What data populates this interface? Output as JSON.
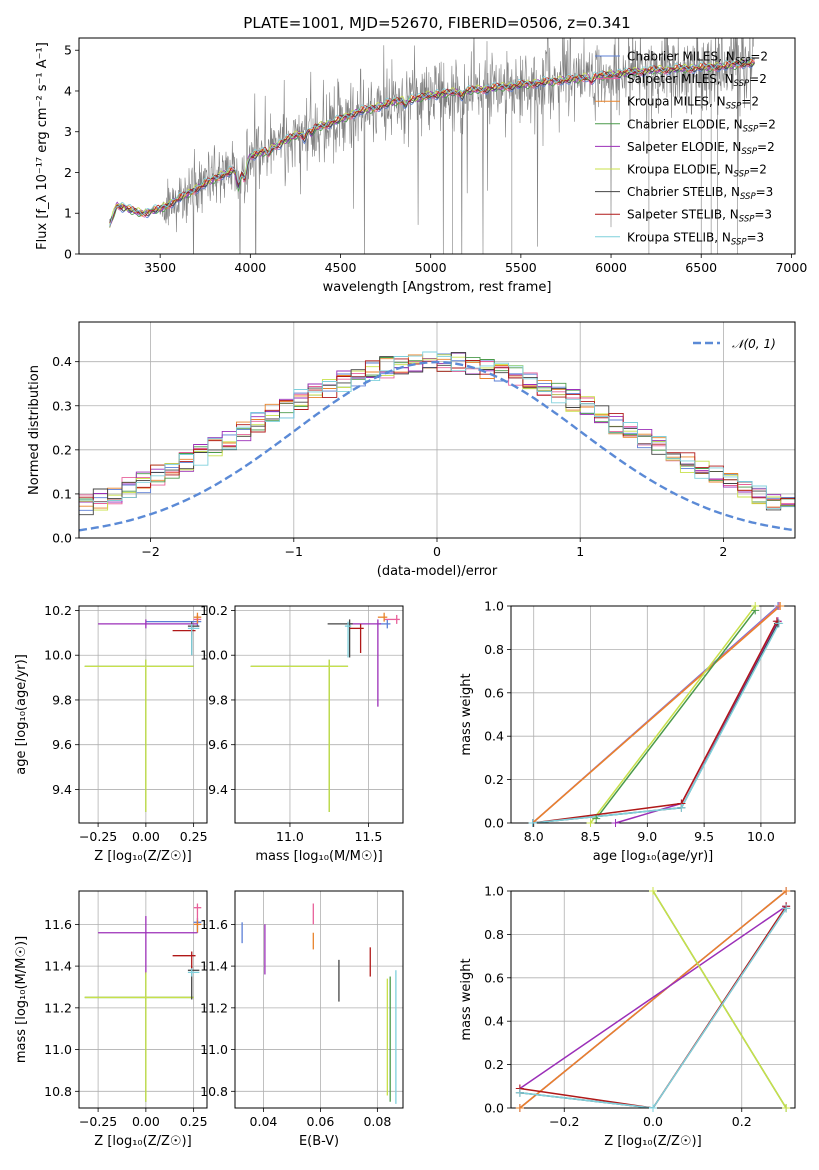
{
  "figure_title": "PLATE=1001, MJD=52670, FIBERID=0506, z=0.341",
  "colors": {
    "Chabrier MILES": "#5b7fd6",
    "Salpeter MILES": "#e8609a",
    "Kroupa MILES": "#e8832a",
    "Chabrier ELODIE": "#4a9a4a",
    "Salpeter ELODIE": "#9b2fb8",
    "Kroupa ELODIE": "#c8e04a",
    "Chabrier STELIB": "#444444",
    "Salpeter STELIB": "#b01818",
    "Kroupa STELIB": "#7fd0dc",
    "data": "#808080",
    "normal": "#5b8ad6"
  },
  "chart_data": [
    {
      "id": "spectrum",
      "type": "line",
      "xlabel": "wavelength [Angstrom, rest frame]",
      "ylabel": "Flux [f_λ 10⁻¹⁷ erg cm⁻² s⁻¹ A⁻¹]",
      "xlim": [
        3050,
        7020
      ],
      "ylim": [
        0,
        5.3
      ],
      "xticks": [
        3500,
        4000,
        4500,
        5000,
        5500,
        6000,
        6500,
        7000
      ],
      "yticks": [
        0,
        1,
        2,
        3,
        4,
        5
      ],
      "grid": false,
      "legend_position": "upper-right",
      "model_continuum": {
        "x": [
          3220,
          3260,
          3300,
          3350,
          3400,
          3500,
          3600,
          3700,
          3800,
          3900,
          3950,
          4000,
          4100,
          4200,
          4300,
          4400,
          4500,
          4600,
          4700,
          4800,
          4900,
          5000,
          5200,
          5400,
          5600,
          5800,
          6000,
          6200,
          6400,
          6600,
          6800
        ],
        "y": [
          0.7,
          1.2,
          1.15,
          1.05,
          1.0,
          1.1,
          1.35,
          1.6,
          1.85,
          2.05,
          2.0,
          2.4,
          2.55,
          2.8,
          3.0,
          3.15,
          3.3,
          3.5,
          3.6,
          3.75,
          3.8,
          3.9,
          4.0,
          4.1,
          4.2,
          4.3,
          4.4,
          4.5,
          4.55,
          4.6,
          4.7
        ]
      },
      "series": [
        {
          "name": "Chabrier MILES, N_SSP=2"
        },
        {
          "name": "Salpeter MILES, N_SSP=2"
        },
        {
          "name": "Kroupa MILES, N_SSP=2"
        },
        {
          "name": "Chabrier ELODIE, N_SSP=2"
        },
        {
          "name": "Salpeter ELODIE, N_SSP=2"
        },
        {
          "name": "Kroupa ELODIE, N_SSP=2"
        },
        {
          "name": "Chabrier STELIB, N_SSP=3"
        },
        {
          "name": "Salpeter STELIB, N_SSP=3"
        },
        {
          "name": "Kroupa STELIB, N_SSP=3"
        }
      ]
    },
    {
      "id": "residuals",
      "type": "line",
      "xlabel": "(data-model)/error",
      "ylabel": "Normed distribution",
      "xlim": [
        -2.5,
        2.5
      ],
      "ylim": [
        0,
        0.49
      ],
      "xticks": [
        -2,
        -1,
        0,
        1,
        2
      ],
      "yticks": [
        0.0,
        0.1,
        0.2,
        0.3,
        0.4
      ],
      "grid": true,
      "legend_position": "upper-right",
      "normal_label": "𝒩(0, 1)",
      "normal_sigma": 1
    },
    {
      "id": "age_vs_Z",
      "type": "scatter",
      "xlabel": "Z [log₁₀(Z/Z☉)]",
      "ylabel": "age [log₁₀(age/yr)]",
      "xlim": [
        -0.35,
        0.32
      ],
      "ylim": [
        9.25,
        10.22
      ],
      "xticks": [
        -0.25,
        0.0,
        0.25
      ],
      "yticks": [
        9.4,
        9.6,
        9.8,
        10.0,
        10.2
      ],
      "grid": true,
      "points": [
        {
          "model": "Chabrier MILES",
          "x": 0.27,
          "y": 10.15,
          "xerr": [
            0.27,
            0.02
          ],
          "yerr": [
            0.02,
            0.02
          ]
        },
        {
          "model": "Salpeter MILES",
          "x": 0.27,
          "y": 10.16,
          "xerr": [
            0.02,
            0.02
          ],
          "yerr": [
            0.02,
            0.02
          ]
        },
        {
          "model": "Kroupa MILES",
          "x": 0.27,
          "y": 10.17,
          "xerr": [
            0.02,
            0.02
          ],
          "yerr": [
            0.03,
            0.02
          ]
        },
        {
          "model": "Chabrier ELODIE",
          "x": 0.0,
          "y": 9.95,
          "xerr": [
            0.32,
            0.25
          ],
          "yerr": [
            0.65,
            0.03
          ]
        },
        {
          "model": "Salpeter ELODIE",
          "x": 0.0,
          "y": 10.14,
          "xerr": [
            0.25,
            0.27
          ],
          "yerr": [
            0.02,
            0.02
          ]
        },
        {
          "model": "Kroupa ELODIE",
          "x": 0.0,
          "y": 9.95,
          "xerr": [
            0.32,
            0.25
          ],
          "yerr": [
            0.65,
            0.03
          ]
        },
        {
          "model": "Chabrier STELIB",
          "x": 0.24,
          "y": 10.13,
          "xerr": [
            0.02,
            0.04
          ],
          "yerr": [
            0.13,
            0.02
          ]
        },
        {
          "model": "Salpeter STELIB",
          "x": 0.24,
          "y": 10.11,
          "xerr": [
            0.1,
            0.02
          ],
          "yerr": [
            0.02,
            0.02
          ]
        },
        {
          "model": "Kroupa STELIB",
          "x": 0.24,
          "y": 10.12,
          "xerr": [
            0.02,
            0.04
          ],
          "yerr": [
            0.12,
            0.02
          ]
        }
      ]
    },
    {
      "id": "age_vs_mass",
      "type": "scatter",
      "xlabel": "mass [log₁₀(M/M☉)]",
      "ylabel": "",
      "xlim": [
        10.65,
        11.72
      ],
      "ylim": [
        9.25,
        10.22
      ],
      "xticks": [
        11.0,
        11.5
      ],
      "yticks": [
        9.4,
        9.6,
        9.8,
        10.0,
        10.2
      ],
      "grid": true,
      "points": [
        {
          "model": "Chabrier MILES",
          "x": 11.62,
          "y": 10.14,
          "xerr": [
            0.05,
            0.02
          ],
          "yerr": [
            0.02,
            0.02
          ]
        },
        {
          "model": "Salpeter MILES",
          "x": 11.68,
          "y": 10.16,
          "xerr": [
            0.08,
            0.02
          ],
          "yerr": [
            0.02,
            0.02
          ]
        },
        {
          "model": "Kroupa MILES",
          "x": 11.6,
          "y": 10.17,
          "xerr": [
            0.04,
            0.02
          ],
          "yerr": [
            0.02,
            0.02
          ]
        },
        {
          "model": "Chabrier ELODIE",
          "x": 11.25,
          "y": 9.95,
          "xerr": [
            0.5,
            0.12
          ],
          "yerr": [
            0.65,
            0.03
          ]
        },
        {
          "model": "Salpeter ELODIE",
          "x": 11.56,
          "y": 10.14,
          "xerr": [
            0.2,
            0.02
          ],
          "yerr": [
            0.37,
            0.02
          ]
        },
        {
          "model": "Kroupa ELODIE",
          "x": 11.25,
          "y": 9.95,
          "xerr": [
            0.5,
            0.12
          ],
          "yerr": [
            0.65,
            0.03
          ]
        },
        {
          "model": "Chabrier STELIB",
          "x": 11.38,
          "y": 10.14,
          "xerr": [
            0.14,
            0.02
          ],
          "yerr": [
            0.15,
            0.02
          ]
        },
        {
          "model": "Salpeter STELIB",
          "x": 11.45,
          "y": 10.12,
          "xerr": [
            0.07,
            0.02
          ],
          "yerr": [
            0.11,
            0.02
          ]
        },
        {
          "model": "Kroupa STELIB",
          "x": 11.37,
          "y": 10.13,
          "xerr": [
            0.02,
            0.02
          ],
          "yerr": [
            0.14,
            0.02
          ]
        }
      ]
    },
    {
      "id": "massweight_vs_age",
      "type": "line",
      "xlabel": "age [log₁₀(age/yr)]",
      "ylabel": "mass weight",
      "xlim": [
        7.8,
        10.3
      ],
      "ylim": [
        0,
        1
      ],
      "xticks": [
        8.0,
        8.5,
        9.0,
        9.5,
        10.0
      ],
      "yticks": [
        0.0,
        0.2,
        0.4,
        0.6,
        0.8,
        1.0
      ],
      "grid": true,
      "series": [
        {
          "model": "Chabrier MILES",
          "x": [
            7.99,
            10.15
          ],
          "y": [
            0.0,
            1.0
          ]
        },
        {
          "model": "Salpeter MILES",
          "x": [
            7.99,
            10.16
          ],
          "y": [
            0.0,
            1.0
          ]
        },
        {
          "model": "Kroupa MILES",
          "x": [
            7.99,
            10.17
          ],
          "y": [
            0.0,
            1.0
          ]
        },
        {
          "model": "Chabrier ELODIE",
          "x": [
            8.55,
            9.95
          ],
          "y": [
            0.02,
            0.98
          ]
        },
        {
          "model": "Salpeter ELODIE",
          "x": [
            8.72,
            9.3,
            10.15
          ],
          "y": [
            0.0,
            0.09,
            0.93
          ]
        },
        {
          "model": "Kroupa ELODIE",
          "x": [
            8.5,
            9.95
          ],
          "y": [
            0.0,
            1.0
          ]
        },
        {
          "model": "Chabrier STELIB",
          "x": [
            7.99,
            9.3,
            10.15
          ],
          "y": [
            0.0,
            0.07,
            0.92
          ]
        },
        {
          "model": "Salpeter STELIB",
          "x": [
            7.99,
            9.3,
            10.14
          ],
          "y": [
            0.0,
            0.09,
            0.93
          ]
        },
        {
          "model": "Kroupa STELIB",
          "x": [
            7.99,
            9.3,
            10.16
          ],
          "y": [
            0.0,
            0.07,
            0.92
          ]
        }
      ]
    },
    {
      "id": "mass_vs_Z",
      "type": "scatter",
      "xlabel": "Z [log₁₀(Z/Z☉)]",
      "ylabel": "mass [log₁₀(M/M☉)]",
      "xlim": [
        -0.35,
        0.32
      ],
      "ylim": [
        10.72,
        11.76
      ],
      "xticks": [
        -0.25,
        0.0,
        0.25
      ],
      "yticks": [
        10.8,
        11.0,
        11.2,
        11.4,
        11.6
      ],
      "grid": true,
      "points": [
        {
          "model": "Chabrier MILES",
          "x": 0.27,
          "y": 11.61,
          "xerr": [
            0.02,
            0.02
          ],
          "yerr": [
            0.05,
            0.02
          ]
        },
        {
          "model": "Salpeter MILES",
          "x": 0.27,
          "y": 11.68,
          "xerr": [
            0.02,
            0.02
          ],
          "yerr": [
            0.08,
            0.02
          ]
        },
        {
          "model": "Kroupa MILES",
          "x": 0.27,
          "y": 11.6,
          "xerr": [
            0.02,
            0.02
          ],
          "yerr": [
            0.04,
            0.02
          ]
        },
        {
          "model": "Chabrier ELODIE",
          "x": 0.0,
          "y": 11.25,
          "xerr": [
            0.32,
            0.25
          ],
          "yerr": [
            0.5,
            0.12
          ]
        },
        {
          "model": "Salpeter ELODIE",
          "x": 0.0,
          "y": 11.56,
          "xerr": [
            0.25,
            0.27
          ],
          "yerr": [
            0.2,
            0.08
          ]
        },
        {
          "model": "Kroupa ELODIE",
          "x": 0.0,
          "y": 11.25,
          "xerr": [
            0.32,
            0.25
          ],
          "yerr": [
            0.5,
            0.12
          ]
        },
        {
          "model": "Chabrier STELIB",
          "x": 0.24,
          "y": 11.38,
          "xerr": [
            0.02,
            0.04
          ],
          "yerr": [
            0.14,
            0.02
          ]
        },
        {
          "model": "Salpeter STELIB",
          "x": 0.24,
          "y": 11.45,
          "xerr": [
            0.1,
            0.02
          ],
          "yerr": [
            0.07,
            0.02
          ]
        },
        {
          "model": "Kroupa STELIB",
          "x": 0.24,
          "y": 11.37,
          "xerr": [
            0.02,
            0.04
          ],
          "yerr": [
            0.02,
            0.02
          ]
        }
      ]
    },
    {
      "id": "mass_vs_ebv",
      "type": "scatter",
      "xlabel": "E(B-V)",
      "ylabel": "",
      "xlim": [
        0.03,
        0.089
      ],
      "ylim": [
        10.72,
        11.76
      ],
      "xticks": [
        0.04,
        0.06,
        0.08
      ],
      "yticks": [
        10.8,
        11.0,
        11.2,
        11.4,
        11.6
      ],
      "grid": true,
      "points": [
        {
          "model": "Chabrier MILES",
          "x": 0.0325,
          "y": 11.56,
          "yerr": [
            0.05,
            0.05
          ]
        },
        {
          "model": "Salpeter MILES",
          "x": 0.0575,
          "y": 11.65,
          "yerr": [
            0.05,
            0.05
          ]
        },
        {
          "model": "Kroupa MILES",
          "x": 0.0575,
          "y": 11.52,
          "yerr": [
            0.04,
            0.04
          ]
        },
        {
          "model": "Chabrier ELODIE",
          "x": 0.0845,
          "y": 11.05,
          "yerr": [
            0.3,
            0.3
          ]
        },
        {
          "model": "Salpeter ELODIE",
          "x": 0.0405,
          "y": 11.48,
          "yerr": [
            0.12,
            0.12
          ]
        },
        {
          "model": "Kroupa ELODIE",
          "x": 0.0835,
          "y": 11.06,
          "yerr": [
            0.28,
            0.28
          ]
        },
        {
          "model": "Chabrier STELIB",
          "x": 0.0665,
          "y": 11.33,
          "yerr": [
            0.1,
            0.1
          ]
        },
        {
          "model": "Salpeter STELIB",
          "x": 0.0775,
          "y": 11.42,
          "yerr": [
            0.07,
            0.07
          ]
        },
        {
          "model": "Kroupa STELIB",
          "x": 0.0865,
          "y": 11.06,
          "yerr": [
            0.32,
            0.32
          ]
        }
      ]
    },
    {
      "id": "massweight_vs_Z",
      "type": "line",
      "xlabel": "Z [log₁₀(Z/Z☉)]",
      "ylabel": "mass weight",
      "xlim": [
        -0.32,
        0.32
      ],
      "ylim": [
        0,
        1
      ],
      "xticks": [
        -0.2,
        0.0,
        0.2
      ],
      "yticks": [
        0.0,
        0.2,
        0.4,
        0.6,
        0.8,
        1.0
      ],
      "grid": true,
      "series": [
        {
          "model": "Chabrier MILES",
          "x": [
            -0.3,
            0.3
          ],
          "y": [
            0.0,
            1.0
          ]
        },
        {
          "model": "Salpeter MILES",
          "x": [
            -0.3,
            0.3
          ],
          "y": [
            0.0,
            1.0
          ]
        },
        {
          "model": "Kroupa MILES",
          "x": [
            -0.3,
            0.3
          ],
          "y": [
            0.0,
            1.0
          ]
        },
        {
          "model": "Chabrier ELODIE",
          "x": [
            0.0,
            0.3
          ],
          "y": [
            1.0,
            0.0
          ]
        },
        {
          "model": "Salpeter ELODIE",
          "x": [
            -0.3,
            0.3
          ],
          "y": [
            0.09,
            0.93
          ]
        },
        {
          "model": "Kroupa ELODIE",
          "x": [
            0.0,
            0.3
          ],
          "y": [
            1.0,
            0.0
          ]
        },
        {
          "model": "Chabrier STELIB",
          "x": [
            -0.3,
            0.0,
            0.3
          ],
          "y": [
            0.07,
            0.0,
            0.92
          ]
        },
        {
          "model": "Salpeter STELIB",
          "x": [
            -0.3,
            0.0,
            0.3
          ],
          "y": [
            0.09,
            0.0,
            0.93
          ]
        },
        {
          "model": "Kroupa STELIB",
          "x": [
            -0.3,
            0.0,
            0.3
          ],
          "y": [
            0.07,
            0.0,
            0.92
          ]
        }
      ]
    }
  ]
}
